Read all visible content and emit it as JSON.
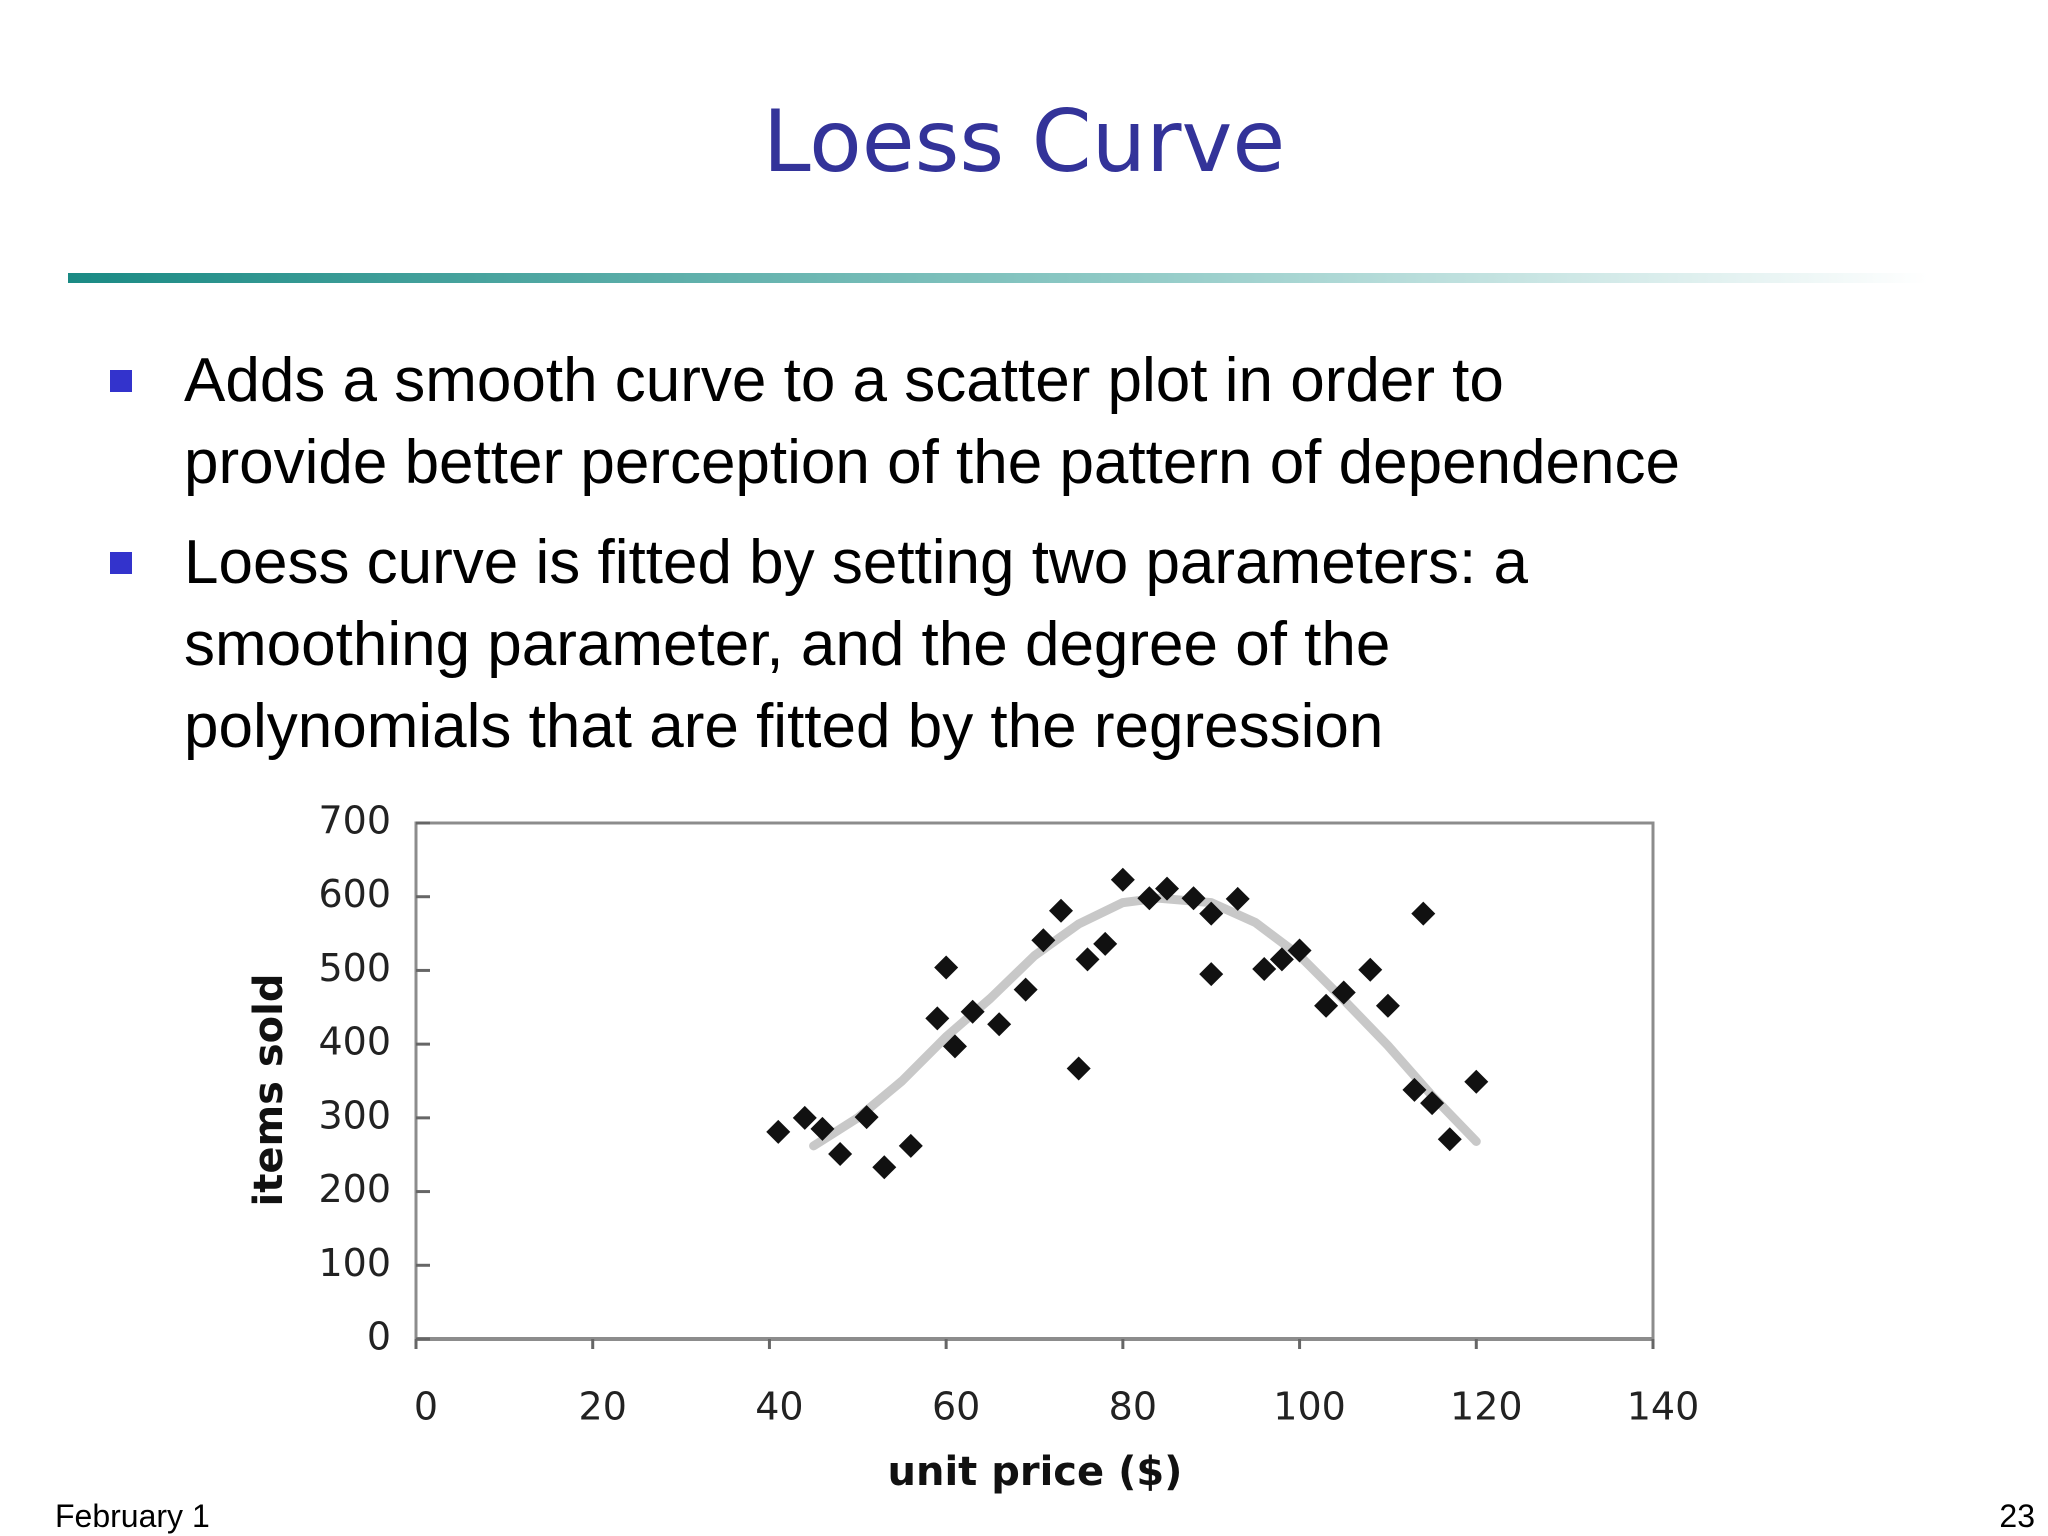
{
  "title": "Loess Curve",
  "bullets": [
    [
      "Adds a smooth curve to a scatter plot in order to",
      "provide better perception of the pattern of dependence"
    ],
    [
      "Loess curve is fitted by setting two parameters: a",
      "smoothing parameter, and the degree of the",
      "polynomials that are fitted by the regression"
    ]
  ],
  "chart_data": {
    "type": "scatter",
    "x_label": "unit price ($)",
    "y_label": "items sold",
    "xlim": [
      0,
      140
    ],
    "xticks": [
      0,
      20,
      40,
      60,
      80,
      100,
      120,
      140
    ],
    "ylim": [
      0,
      700
    ],
    "yticks": [
      0,
      100,
      200,
      300,
      400,
      500,
      600,
      700
    ],
    "series": [
      {
        "type": "scatter",
        "color": "#111111",
        "x": [
          41,
          44,
          46,
          48,
          51,
          53,
          56,
          59,
          60,
          61,
          63,
          66,
          69,
          71,
          73,
          75,
          76,
          78,
          80,
          83,
          85,
          88,
          90,
          90,
          93,
          96,
          98,
          100,
          103,
          105,
          108,
          110,
          113,
          114,
          115,
          117,
          120
        ],
        "values": [
          281,
          300,
          285,
          251,
          301,
          233,
          262,
          435,
          504,
          397,
          444,
          427,
          474,
          541,
          581,
          367,
          515,
          536,
          623,
          598,
          611,
          598,
          577,
          495,
          597,
          502,
          515,
          527,
          452,
          470,
          501,
          452,
          338,
          577,
          320,
          271,
          349
        ]
      },
      {
        "type": "line",
        "color": "#c8c8c8",
        "x": [
          45,
          50,
          55,
          60,
          65,
          70,
          75,
          80,
          84,
          90,
          95,
          100,
          105,
          110,
          115,
          120
        ],
        "values": [
          262,
          300,
          350,
          410,
          462,
          520,
          563,
          592,
          598,
          592,
          565,
          520,
          460,
          398,
          330,
          268
        ]
      }
    ]
  },
  "footer": {
    "date": "February 1",
    "page": "23"
  }
}
